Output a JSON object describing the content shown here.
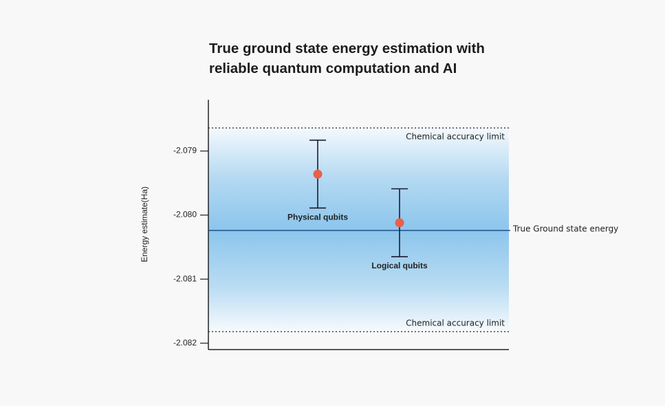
{
  "chart_data": {
    "type": "errorbar",
    "title": "True ground state energy estimation with reliable quantum computation and AI",
    "y_label": "Energy estimate(Ha)",
    "categories": [
      "Physical qubits",
      "Logical qubits"
    ],
    "values": [
      -2.07936,
      -2.08012
    ],
    "errors": [
      0.00053,
      0.00053
    ],
    "color": "#e8604a",
    "error_color": "#1a1a2e",
    "ylim": [
      -2.0821,
      -2.0782
    ],
    "yticks": [
      -2.079,
      {
        "value": -2.08,
        "label": "-2.080"
      },
      -2.081,
      -2.082
    ],
    "reference_lines": [
      {
        "value": -2.07864,
        "label": "Chemical accuracy limit",
        "style": "dotted",
        "color": "#333333"
      },
      {
        "value": -2.08024,
        "label": "True Ground state energy",
        "style": "solid",
        "color": "#1f4f8a"
      },
      {
        "value": -2.08182,
        "label": "Chemical accuracy limit",
        "style": "dotted",
        "color": "#333333"
      }
    ]
  }
}
